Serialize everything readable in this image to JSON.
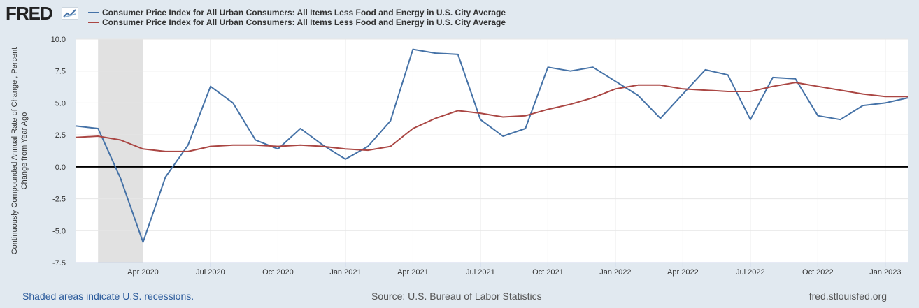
{
  "header": {
    "logo_text": "FRED",
    "logo_icon": "chart-line-icon"
  },
  "legend": [
    {
      "label": "Consumer Price Index for All Urban Consumers: All Items Less Food and Energy in U.S. City Average",
      "color": "#4572a7"
    },
    {
      "label": "Consumer Price Index for All Urban Consumers: All Items Less Food and Energy in U.S. City Average",
      "color": "#aa4643"
    }
  ],
  "footer": {
    "recession_note": "Shaded areas indicate U.S. recessions.",
    "source": "Source: U.S. Bureau of Labor Statistics",
    "site": "fred.stlouisfed.org"
  },
  "chart_data": {
    "type": "line",
    "ylabel_lines": [
      "Continuously Compounded Annual Rate of Change , Percent",
      "Change from Year Ago"
    ],
    "ylim": [
      -7.5,
      10.0
    ],
    "yticks": [
      10.0,
      7.5,
      5.0,
      2.5,
      0.0,
      -2.5,
      -5.0,
      -7.5
    ],
    "ytick_labels": [
      "10.0",
      "7.5",
      "5.0",
      "2.5",
      "0.0",
      "-2.5",
      "-5.0",
      "-7.5"
    ],
    "x_start": "2020-01",
    "x_end": "2023-02",
    "xtick_labels": [
      "Apr 2020",
      "Jul 2020",
      "Oct 2020",
      "Jan 2021",
      "Apr 2021",
      "Jul 2021",
      "Oct 2021",
      "Jan 2022",
      "Apr 2022",
      "Jul 2022",
      "Oct 2022",
      "Jan 2023"
    ],
    "xtick_positions": [
      "2020-04",
      "2020-07",
      "2020-10",
      "2021-01",
      "2021-04",
      "2021-07",
      "2021-10",
      "2022-01",
      "2022-04",
      "2022-07",
      "2022-10",
      "2023-01"
    ],
    "recession": [
      "2020-02",
      "2020-04"
    ],
    "grid": true,
    "zero_line": true,
    "series": [
      {
        "color": "#4572a7",
        "x": [
          "2020-01",
          "2020-02",
          "2020-03",
          "2020-04",
          "2020-05",
          "2020-06",
          "2020-07",
          "2020-08",
          "2020-09",
          "2020-10",
          "2020-11",
          "2020-12",
          "2021-01",
          "2021-02",
          "2021-03",
          "2021-04",
          "2021-05",
          "2021-06",
          "2021-07",
          "2021-08",
          "2021-09",
          "2021-10",
          "2021-11",
          "2021-12",
          "2022-01",
          "2022-02",
          "2022-03",
          "2022-04",
          "2022-05",
          "2022-06",
          "2022-07",
          "2022-08",
          "2022-09",
          "2022-10",
          "2022-11",
          "2022-12",
          "2023-01",
          "2023-02"
        ],
        "values": [
          3.2,
          3.0,
          -0.9,
          -5.9,
          -0.8,
          1.7,
          6.3,
          5.0,
          2.1,
          1.4,
          3.0,
          1.7,
          0.6,
          1.6,
          3.6,
          9.2,
          8.9,
          8.8,
          3.7,
          2.4,
          3.0,
          7.8,
          7.5,
          7.8,
          6.7,
          5.6,
          3.8,
          5.7,
          7.6,
          7.2,
          3.7,
          7.0,
          6.9,
          4.0,
          3.7,
          4.8,
          5.0,
          5.4
        ]
      },
      {
        "color": "#aa4643",
        "x": [
          "2020-01",
          "2020-02",
          "2020-03",
          "2020-04",
          "2020-05",
          "2020-06",
          "2020-07",
          "2020-08",
          "2020-09",
          "2020-10",
          "2020-11",
          "2020-12",
          "2021-01",
          "2021-02",
          "2021-03",
          "2021-04",
          "2021-05",
          "2021-06",
          "2021-07",
          "2021-08",
          "2021-09",
          "2021-10",
          "2021-11",
          "2021-12",
          "2022-01",
          "2022-02",
          "2022-03",
          "2022-04",
          "2022-05",
          "2022-06",
          "2022-07",
          "2022-08",
          "2022-09",
          "2022-10",
          "2022-11",
          "2022-12",
          "2023-01",
          "2023-02"
        ],
        "values": [
          2.3,
          2.4,
          2.1,
          1.4,
          1.2,
          1.2,
          1.6,
          1.7,
          1.7,
          1.6,
          1.7,
          1.6,
          1.4,
          1.3,
          1.6,
          3.0,
          3.8,
          4.4,
          4.2,
          3.9,
          4.0,
          4.5,
          4.9,
          5.4,
          6.1,
          6.4,
          6.4,
          6.1,
          6.0,
          5.9,
          5.9,
          6.3,
          6.6,
          6.3,
          6.0,
          5.7,
          5.5,
          5.5
        ]
      }
    ]
  }
}
